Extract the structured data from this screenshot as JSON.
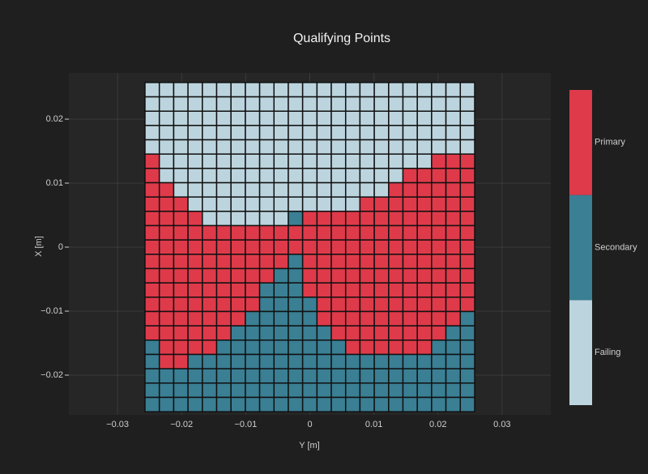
{
  "chart_data": {
    "type": "heatmap",
    "title": "Qualifying Points",
    "xlabel": "Y [m]",
    "ylabel": "X [m]",
    "x": [
      -0.0246,
      -0.02236,
      -0.02012,
      -0.01789,
      -0.01565,
      -0.01342,
      -0.01118,
      -0.00894,
      -0.00671,
      -0.00447,
      -0.00224,
      0,
      0.00224,
      0.00447,
      0.00671,
      0.00894,
      0.01118,
      0.01342,
      0.01565,
      0.01789,
      0.02012,
      0.02236,
      0.0246
    ],
    "y": [
      0.0246,
      0.02236,
      0.02012,
      0.01789,
      0.01565,
      0.01342,
      0.01118,
      0.00894,
      0.00671,
      0.00447,
      0.00224,
      0,
      -0.00224,
      -0.00447,
      -0.00671,
      -0.00894,
      -0.01118,
      -0.01342,
      -0.01565,
      -0.01789,
      -0.02012,
      -0.02236,
      -0.0246
    ],
    "z": [
      [
        0,
        0,
        0,
        0,
        0,
        0,
        0,
        0,
        0,
        0,
        0,
        0,
        0,
        0,
        0,
        0,
        0,
        0,
        0,
        0,
        0,
        0,
        0
      ],
      [
        0,
        0,
        0,
        0,
        0,
        0,
        0,
        0,
        0,
        0,
        0,
        0,
        0,
        0,
        0,
        0,
        0,
        0,
        0,
        0,
        0,
        0,
        0
      ],
      [
        0,
        0,
        0,
        0,
        0,
        0,
        0,
        0,
        0,
        0,
        0,
        0,
        0,
        0,
        0,
        0,
        0,
        0,
        0,
        0,
        0,
        0,
        0
      ],
      [
        0,
        0,
        0,
        0,
        0,
        0,
        0,
        0,
        0,
        0,
        0,
        0,
        0,
        0,
        0,
        0,
        0,
        0,
        0,
        0,
        0,
        0,
        0
      ],
      [
        0,
        0,
        0,
        0,
        0,
        0,
        0,
        0,
        0,
        0,
        0,
        0,
        0,
        0,
        0,
        0,
        0,
        0,
        0,
        0,
        0,
        0,
        0
      ],
      [
        2,
        0,
        0,
        0,
        0,
        0,
        0,
        0,
        0,
        0,
        0,
        0,
        0,
        0,
        0,
        0,
        0,
        0,
        0,
        0,
        2,
        2,
        2
      ],
      [
        2,
        0,
        0,
        0,
        0,
        0,
        0,
        0,
        0,
        0,
        0,
        0,
        0,
        0,
        0,
        0,
        0,
        0,
        2,
        2,
        2,
        2,
        2
      ],
      [
        2,
        2,
        0,
        0,
        0,
        0,
        0,
        0,
        0,
        0,
        0,
        0,
        0,
        0,
        0,
        0,
        0,
        2,
        2,
        2,
        2,
        2,
        2
      ],
      [
        2,
        2,
        2,
        0,
        0,
        0,
        0,
        0,
        0,
        0,
        0,
        0,
        0,
        0,
        0,
        2,
        2,
        2,
        2,
        2,
        2,
        2,
        2
      ],
      [
        2,
        2,
        2,
        2,
        0,
        0,
        0,
        0,
        0,
        0,
        1,
        2,
        2,
        2,
        2,
        2,
        2,
        2,
        2,
        2,
        2,
        2,
        2
      ],
      [
        2,
        2,
        2,
        2,
        2,
        2,
        2,
        2,
        2,
        2,
        2,
        2,
        2,
        2,
        2,
        2,
        2,
        2,
        2,
        2,
        2,
        2,
        2
      ],
      [
        2,
        2,
        2,
        2,
        2,
        2,
        2,
        2,
        2,
        2,
        2,
        2,
        2,
        2,
        2,
        2,
        2,
        2,
        2,
        2,
        2,
        2,
        2
      ],
      [
        2,
        2,
        2,
        2,
        2,
        2,
        2,
        2,
        2,
        2,
        1,
        2,
        2,
        2,
        2,
        2,
        2,
        2,
        2,
        2,
        2,
        2,
        2
      ],
      [
        2,
        2,
        2,
        2,
        2,
        2,
        2,
        2,
        2,
        1,
        1,
        2,
        2,
        2,
        2,
        2,
        2,
        2,
        2,
        2,
        2,
        2,
        2
      ],
      [
        2,
        2,
        2,
        2,
        2,
        2,
        2,
        2,
        1,
        1,
        1,
        2,
        2,
        2,
        2,
        2,
        2,
        2,
        2,
        2,
        2,
        2,
        2
      ],
      [
        2,
        2,
        2,
        2,
        2,
        2,
        2,
        2,
        1,
        1,
        1,
        1,
        2,
        2,
        2,
        2,
        2,
        2,
        2,
        2,
        2,
        2,
        2
      ],
      [
        2,
        2,
        2,
        2,
        2,
        2,
        2,
        1,
        1,
        1,
        1,
        1,
        2,
        2,
        2,
        2,
        2,
        2,
        2,
        2,
        2,
        2,
        1
      ],
      [
        2,
        2,
        2,
        2,
        2,
        2,
        1,
        1,
        1,
        1,
        1,
        1,
        1,
        2,
        2,
        2,
        2,
        2,
        2,
        2,
        2,
        1,
        1
      ],
      [
        1,
        2,
        2,
        2,
        2,
        1,
        1,
        1,
        1,
        1,
        1,
        1,
        1,
        1,
        2,
        2,
        2,
        2,
        2,
        2,
        1,
        1,
        1
      ],
      [
        1,
        2,
        2,
        1,
        1,
        1,
        1,
        1,
        1,
        1,
        1,
        1,
        1,
        1,
        1,
        1,
        1,
        1,
        1,
        1,
        1,
        1,
        1
      ],
      [
        1,
        1,
        1,
        1,
        1,
        1,
        1,
        1,
        1,
        1,
        1,
        1,
        1,
        1,
        1,
        1,
        1,
        1,
        1,
        1,
        1,
        1,
        1
      ],
      [
        1,
        1,
        1,
        1,
        1,
        1,
        1,
        1,
        1,
        1,
        1,
        1,
        1,
        1,
        1,
        1,
        1,
        1,
        1,
        1,
        1,
        1,
        1
      ],
      [
        1,
        1,
        1,
        1,
        1,
        1,
        1,
        1,
        1,
        1,
        1,
        1,
        1,
        1,
        1,
        1,
        1,
        1,
        1,
        1,
        1,
        1,
        1
      ]
    ],
    "colorbar": {
      "labels": [
        "Failing",
        "Secondary",
        "Primary"
      ],
      "colors": [
        "#bcd4de",
        "#3a7f93",
        "#df3a4a"
      ]
    },
    "xlim": [
      -0.0376,
      0.0376
    ],
    "ylim": [
      -0.0257,
      0.0257
    ],
    "xticks": [
      {
        "value": -0.03,
        "label": "−0.03"
      },
      {
        "value": -0.02,
        "label": "−0.02"
      },
      {
        "value": -0.01,
        "label": "−0.01"
      },
      0,
      0.01,
      0.02,
      0.03
    ],
    "yticks": [
      {
        "value": -0.02,
        "label": "−0.02"
      },
      {
        "value": -0.01,
        "label": "−0.01"
      },
      0,
      0.01,
      0.02
    ],
    "grid": true
  }
}
